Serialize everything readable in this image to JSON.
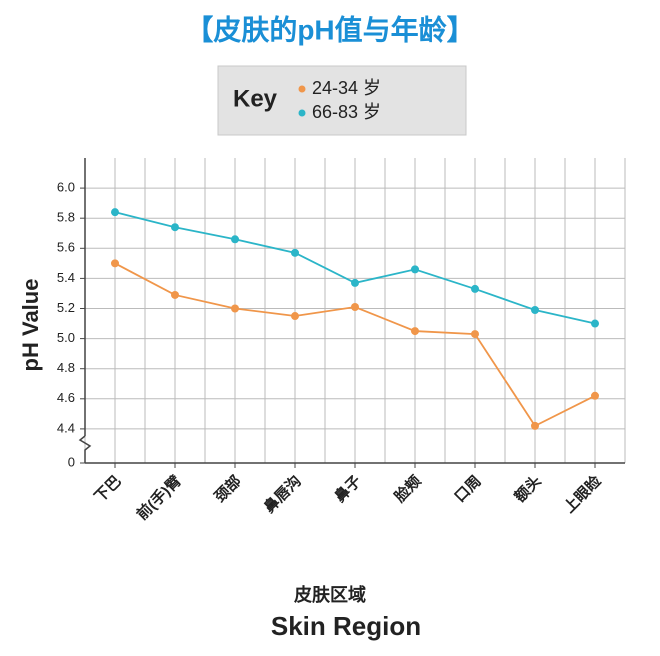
{
  "chart_data": {
    "type": "line",
    "title": "【皮肤的pH值与年龄】",
    "legend_title": "Key",
    "y_label": "pH Value",
    "x_label": "皮肤区域",
    "x_label_en": "Skin Region",
    "categories": [
      "下巴",
      "前(手)臂",
      "颈部",
      "鼻唇沟",
      "鼻子",
      "脸颊",
      "口周",
      "额头",
      "上眼睑"
    ],
    "series": [
      {
        "name": "24-34 岁",
        "color": "#f0964a",
        "values": [
          5.5,
          5.29,
          5.2,
          5.15,
          5.21,
          5.05,
          5.03,
          4.42,
          4.62
        ]
      },
      {
        "name": "66-83 岁",
        "color": "#2bb5c8",
        "values": [
          5.84,
          5.74,
          5.66,
          5.57,
          5.37,
          5.46,
          5.33,
          5.19,
          5.1
        ]
      }
    ],
    "ylim": [
      0,
      6.2
    ],
    "y_break": [
      0,
      4.2
    ],
    "yticks": [
      0,
      {
        "value": 4.4,
        "label": "4.4"
      },
      {
        "value": 4.6,
        "label": "4.6"
      },
      {
        "value": 4.8,
        "label": "4.8"
      },
      {
        "value": 5.0,
        "label": "5.0"
      },
      {
        "value": 5.2,
        "label": "5.2"
      },
      {
        "value": 5.4,
        "label": "5.4"
      },
      {
        "value": 5.6,
        "label": "5.6"
      },
      {
        "value": 5.8,
        "label": "5.8"
      },
      {
        "value": 6.0,
        "label": "6.0"
      }
    ],
    "grid": true
  }
}
